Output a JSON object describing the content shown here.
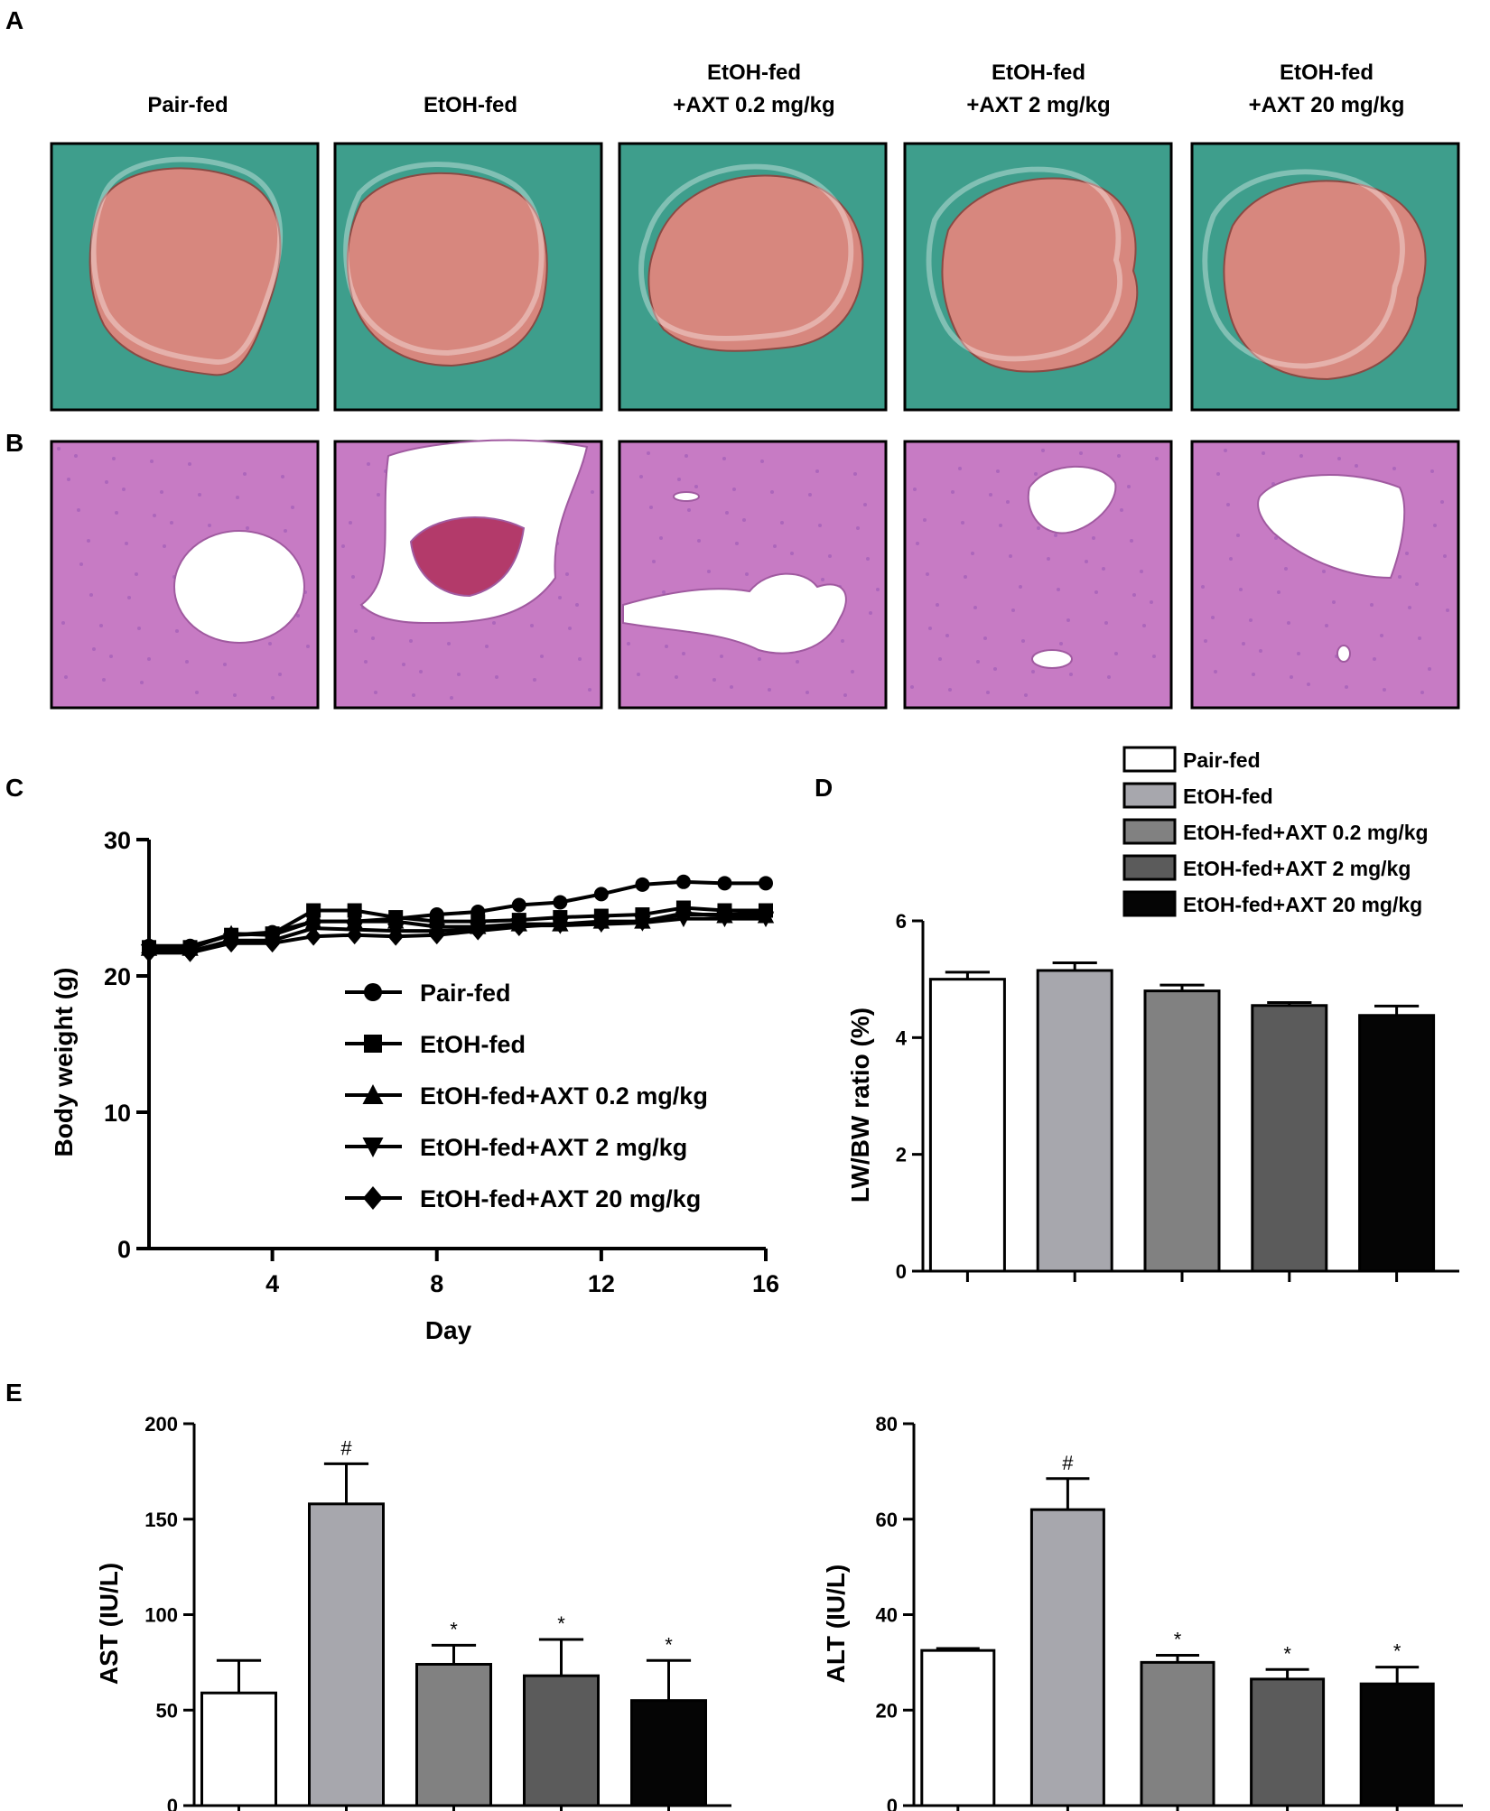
{
  "panels": {
    "a": "A",
    "b": "B",
    "c": "C",
    "d": "D",
    "e": "E"
  },
  "groups": [
    {
      "line1": "",
      "line2": "Pair-fed"
    },
    {
      "line1": "",
      "line2": "EtOH-fed"
    },
    {
      "line1": "EtOH-fed",
      "line2": "+AXT  0.2 mg/kg"
    },
    {
      "line1": "EtOH-fed",
      "line2": "+AXT  2 mg/kg"
    },
    {
      "line1": "EtOH-fed",
      "line2": "+AXT  20 mg/kg"
    }
  ],
  "colors": {
    "photo_bg": "#3e9e8c",
    "liver": "#d7877e",
    "tissue": "#c77bc4",
    "tissue_dark": "#9b59b6",
    "bar_fills": [
      "#ffffff",
      "#a7a7ad",
      "#818181",
      "#5b5b5b",
      "#050505"
    ]
  },
  "chart_data": [
    {
      "id": "C",
      "type": "line",
      "xlabel": "Day",
      "ylabel": "Body weight (g)",
      "xlim": [
        1,
        16
      ],
      "ylim": [
        0,
        30
      ],
      "xticks": [
        4,
        8,
        12,
        16
      ],
      "yticks": [
        0,
        10,
        20,
        30
      ],
      "legend_position": "center-right",
      "x": [
        1,
        2,
        3,
        4,
        5,
        6,
        7,
        8,
        9,
        10,
        11,
        12,
        13,
        14,
        15,
        16
      ],
      "series": [
        {
          "name": "Pair-fed",
          "marker": "circle",
          "values": [
            22.2,
            22.2,
            23.0,
            23.2,
            24.0,
            24.0,
            24.2,
            24.5,
            24.7,
            25.2,
            25.4,
            26.0,
            26.7,
            26.9,
            26.8,
            26.8
          ]
        },
        {
          "name": "EtOH-fed",
          "marker": "square",
          "values": [
            22.1,
            22.1,
            23.0,
            23.1,
            24.8,
            24.8,
            24.3,
            24.0,
            24.0,
            24.1,
            24.3,
            24.4,
            24.5,
            25.0,
            24.8,
            24.8
          ]
        },
        {
          "name": "EtOH-fed+AXT 0.2 mg/kg",
          "marker": "triangle-up",
          "values": [
            22.0,
            22.0,
            23.1,
            23.0,
            24.0,
            24.0,
            24.0,
            23.6,
            23.6,
            23.8,
            23.8,
            24.0,
            24.0,
            24.6,
            24.4,
            24.4
          ]
        },
        {
          "name": "EtOH-fed+AXT 2 mg/kg",
          "marker": "triangle-down",
          "values": [
            21.8,
            21.8,
            22.6,
            22.6,
            23.5,
            23.4,
            23.3,
            23.3,
            23.4,
            23.7,
            23.7,
            23.8,
            23.9,
            24.2,
            24.2,
            24.2
          ]
        },
        {
          "name": "EtOH-fed+AXT 20 mg/kg",
          "marker": "diamond",
          "values": [
            21.7,
            21.7,
            22.4,
            22.4,
            22.9,
            23.0,
            22.9,
            23.0,
            23.3,
            23.6,
            23.8,
            23.9,
            24.0,
            24.5,
            24.5,
            24.6
          ]
        }
      ]
    },
    {
      "id": "D",
      "type": "bar",
      "ylabel": "LW/BW ratio (%)",
      "ylim": [
        0,
        6
      ],
      "yticks": [
        0,
        2,
        4,
        6
      ],
      "legend_position": "top",
      "categories": [
        "Pair-fed",
        "EtOH-fed",
        "EtOH-fed+AXT 0.2 mg/kg",
        "EtOH-fed+AXT 2 mg/kg",
        "EtOH-fed+AXT 20 mg/kg"
      ],
      "values": [
        5.0,
        5.15,
        4.8,
        4.55,
        4.38
      ],
      "errors": [
        0.12,
        0.13,
        0.1,
        0.05,
        0.16
      ]
    },
    {
      "id": "E-AST",
      "type": "bar",
      "ylabel": "AST (IU/L)",
      "ylim": [
        0,
        200
      ],
      "yticks": [
        0,
        50,
        100,
        150,
        200
      ],
      "values": [
        59,
        158,
        74,
        68,
        55
      ],
      "errors": [
        17,
        21,
        10,
        19,
        21
      ],
      "annotations": [
        "",
        "#",
        "*",
        "*",
        "*"
      ]
    },
    {
      "id": "E-ALT",
      "type": "bar",
      "ylabel": "ALT (IU/L)",
      "ylim": [
        0,
        80
      ],
      "yticks": [
        0,
        20,
        40,
        60,
        80
      ],
      "values": [
        32.5,
        62,
        30,
        26.5,
        25.5
      ],
      "errors": [
        0.4,
        6.5,
        1.5,
        2.0,
        3.5
      ],
      "annotations": [
        "",
        "#",
        "*",
        "*",
        "*"
      ]
    }
  ]
}
